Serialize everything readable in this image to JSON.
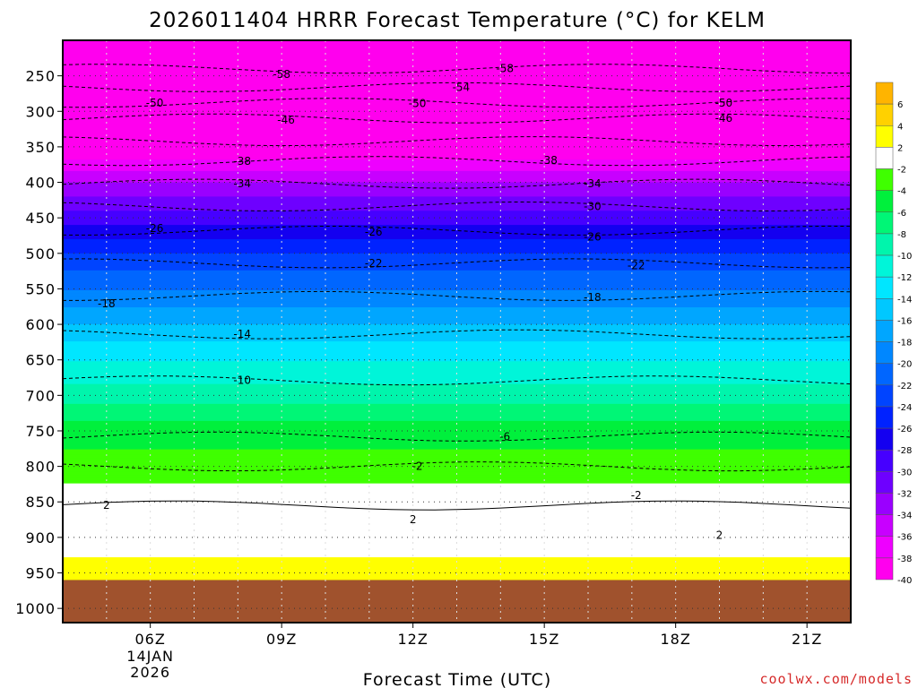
{
  "title": "2026011404 HRRR Forecast Temperature (°C) for KELM",
  "xlabel": "Forecast Time (UTC)",
  "credit": "coolwx.com/models",
  "chart_data": {
    "type": "heatmap",
    "title": "2026011404 HRRR Forecast Temperature (°C) for KELM",
    "xlabel": "Forecast Time (UTC)",
    "ylabel": "",
    "x_ticks": [
      {
        "hour": 6,
        "label": "06Z",
        "date": [
          "14JAN",
          "2026"
        ]
      },
      {
        "hour": 9,
        "label": "09Z"
      },
      {
        "hour": 12,
        "label": "12Z"
      },
      {
        "hour": 15,
        "label": "15Z"
      },
      {
        "hour": 18,
        "label": "18Z"
      },
      {
        "hour": 21,
        "label": "21Z"
      }
    ],
    "x_range_hours": [
      4,
      22
    ],
    "y_ticks": [
      250,
      300,
      350,
      400,
      450,
      500,
      550,
      600,
      650,
      700,
      750,
      800,
      850,
      900,
      950,
      1000
    ],
    "y_range_hPa": [
      200,
      1020
    ],
    "ground_pressure_hPa": 960,
    "colorbar_labels": [
      "6",
      "4",
      "2",
      "-2",
      "-4",
      "-6",
      "-8",
      "-10",
      "-12",
      "-14",
      "-16",
      "-18",
      "-20",
      "-22",
      "-24",
      "-26",
      "-28",
      "-30",
      "-32",
      "-34",
      "-36",
      "-38",
      "-40"
    ],
    "colorbar_colors": [
      "#ffb400",
      "#ffd100",
      "#ffff00",
      "#ffffff",
      "#3fff00",
      "#00f03c",
      "#00f676",
      "#00f5ac",
      "#00f5d9",
      "#00e6ff",
      "#00c8ff",
      "#00a6ff",
      "#0087ff",
      "#0066ff",
      "#0044ff",
      "#0022ff",
      "#1400f0",
      "#4600ff",
      "#6e00ff",
      "#9a00ff",
      "#c800ff",
      "#ee00ff",
      "#ff00ee"
    ],
    "temperature_profile_at_5Z": [
      {
        "p": 960,
        "t": 3
      },
      {
        "p": 900,
        "t": 1
      },
      {
        "p": 850,
        "t": -1
      },
      {
        "p": 800,
        "t": -3
      },
      {
        "p": 750,
        "t": -5
      },
      {
        "p": 700,
        "t": -9
      },
      {
        "p": 650,
        "t": -12
      },
      {
        "p": 600,
        "t": -16
      },
      {
        "p": 550,
        "t": -20
      },
      {
        "p": 500,
        "t": -24
      },
      {
        "p": 450,
        "t": -29
      },
      {
        "p": 400,
        "t": -34
      },
      {
        "p": 350,
        "t": -40
      },
      {
        "p": 300,
        "t": -47
      },
      {
        "p": 250,
        "t": -55
      }
    ],
    "contour_labels": [
      {
        "value": "-58",
        "hour": 9.0,
        "p": 248
      },
      {
        "value": "-58",
        "hour": 14.1,
        "p": 240
      },
      {
        "value": "-54",
        "hour": 13.1,
        "p": 266
      },
      {
        "value": "-50",
        "hour": 6.1,
        "p": 288
      },
      {
        "value": "-50",
        "hour": 12.1,
        "p": 289
      },
      {
        "value": "-50",
        "hour": 19.1,
        "p": 288
      },
      {
        "value": "-46",
        "hour": 9.1,
        "p": 312
      },
      {
        "value": "-46",
        "hour": 19.1,
        "p": 310
      },
      {
        "value": "-38",
        "hour": 8.1,
        "p": 370
      },
      {
        "value": "-38",
        "hour": 15.1,
        "p": 369
      },
      {
        "value": "-34",
        "hour": 8.1,
        "p": 402
      },
      {
        "value": "-34",
        "hour": 16.1,
        "p": 402
      },
      {
        "value": "-30",
        "hour": 16.1,
        "p": 434
      },
      {
        "value": "-26",
        "hour": 6.1,
        "p": 465
      },
      {
        "value": "-26",
        "hour": 11.1,
        "p": 470
      },
      {
        "value": "-26",
        "hour": 16.1,
        "p": 477
      },
      {
        "value": "-22",
        "hour": 11.1,
        "p": 514
      },
      {
        "value": "-22",
        "hour": 17.1,
        "p": 517
      },
      {
        "value": "-18",
        "hour": 5.0,
        "p": 571
      },
      {
        "value": "-18",
        "hour": 16.1,
        "p": 562
      },
      {
        "value": "-14",
        "hour": 8.1,
        "p": 614
      },
      {
        "value": "-10",
        "hour": 8.1,
        "p": 679
      },
      {
        "value": "-6",
        "hour": 14.1,
        "p": 758
      },
      {
        "value": "-2",
        "hour": 12.1,
        "p": 800
      },
      {
        "value": "-2",
        "hour": 17.1,
        "p": 841
      },
      {
        "value": "2",
        "hour": 5.0,
        "p": 855
      },
      {
        "value": "2",
        "hour": 12.0,
        "p": 875
      },
      {
        "value": "2",
        "hour": 19.0,
        "p": 897
      }
    ]
  }
}
